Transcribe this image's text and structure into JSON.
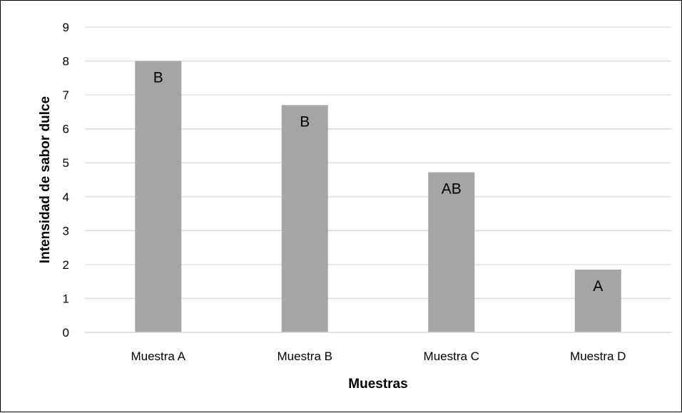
{
  "chart_data": {
    "type": "bar",
    "title": "",
    "xlabel": "Muestras",
    "ylabel": "Intensidad de sabor dulce",
    "categories": [
      "Muestra A",
      "Muestra B",
      "Muestra C",
      "Muestra D"
    ],
    "values": [
      8.0,
      6.7,
      4.72,
      1.85
    ],
    "data_labels": [
      "B",
      "B",
      "AB",
      "A"
    ],
    "ylim": [
      0,
      9
    ],
    "yticks": [
      "0",
      "1",
      "2",
      "3",
      "4",
      "5",
      "6",
      "7",
      "8",
      "9"
    ],
    "grid": true,
    "legend": "none",
    "colors": {
      "bar": "#a5a5a5",
      "grid": "#d9d9d9",
      "text": "#000000"
    }
  }
}
